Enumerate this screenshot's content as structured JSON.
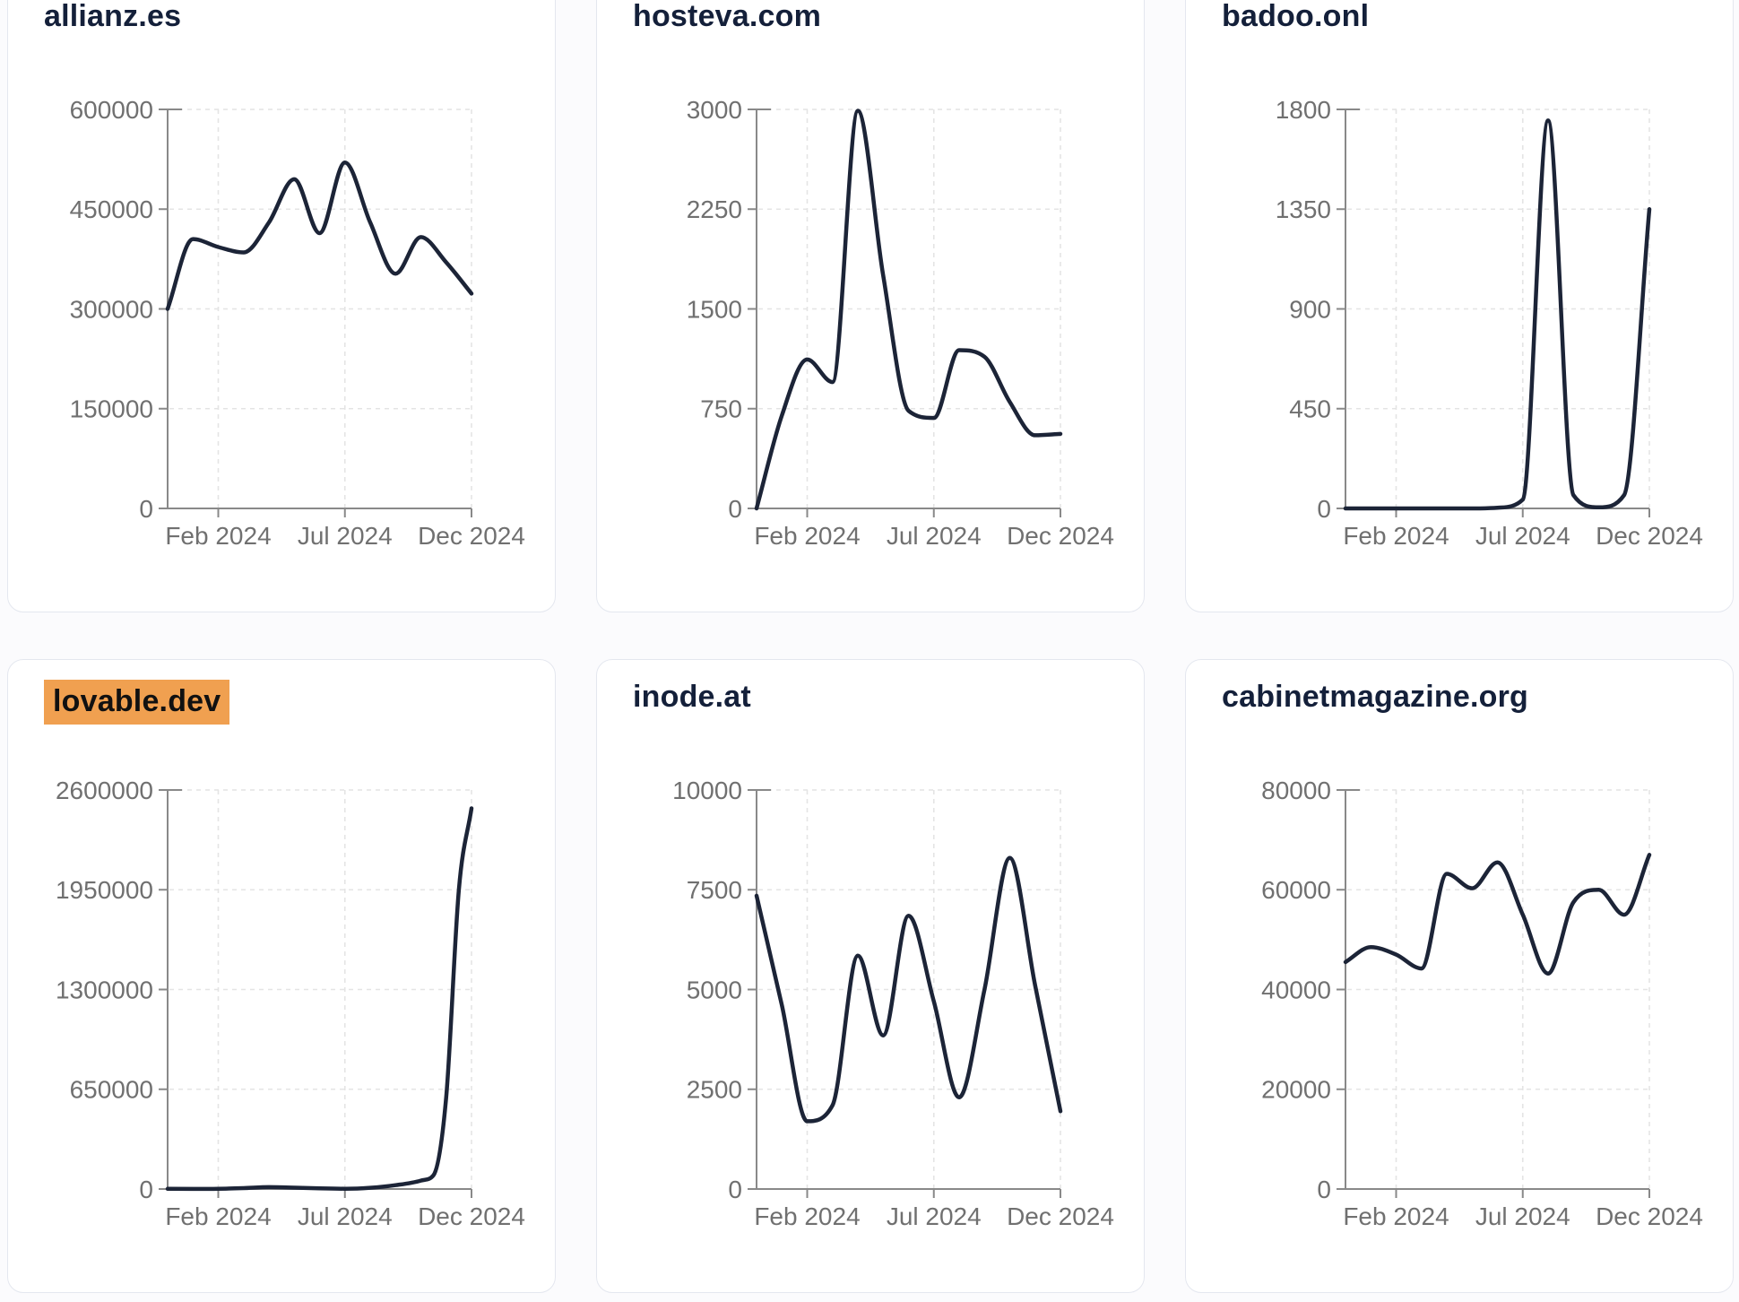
{
  "colors": {
    "line": "#1c2437",
    "title": "#14203a",
    "axis": "#898989",
    "tick_label": "#707070",
    "grid": "#e4e4e4",
    "card_background": "#ffffff",
    "card_border": "#e4e7ef",
    "page_background": "#fbfbfd",
    "highlight_background": "#f0a050",
    "highlight_text": "#111111"
  },
  "x_axis": {
    "t_min": 0,
    "t_max": 12,
    "ticks": [
      {
        "t": 2,
        "label": "Feb 2024"
      },
      {
        "t": 7,
        "label": "Jul 2024"
      },
      {
        "t": 12,
        "label": "Dec 2024"
      }
    ]
  },
  "chart_data": [
    {
      "type": "line",
      "title": "allianz.es",
      "highlighted": false,
      "ylim": [
        0,
        600000
      ],
      "y_ticks": [
        0,
        150000,
        300000,
        450000,
        600000
      ],
      "x_tick_labels": [
        "Feb 2024",
        "Jul 2024",
        "Dec 2024"
      ],
      "x": [
        0,
        1,
        2,
        3,
        4,
        5,
        6,
        7,
        8,
        9,
        10,
        11,
        12
      ],
      "values": [
        300000,
        405000,
        393000,
        385000,
        430000,
        495000,
        414000,
        520000,
        430000,
        353000,
        408000,
        370000,
        323000
      ]
    },
    {
      "type": "line",
      "title": "hosteva.com",
      "highlighted": false,
      "ylim": [
        0,
        3000
      ],
      "y_ticks": [
        0,
        750,
        1500,
        2250,
        3000
      ],
      "x_tick_labels": [
        "Feb 2024",
        "Jul 2024",
        "Dec 2024"
      ],
      "x": [
        0,
        1,
        2,
        3,
        4,
        5,
        6,
        7,
        8,
        9,
        10,
        11,
        12
      ],
      "values": [
        0,
        700,
        1120,
        950,
        2990,
        1750,
        735,
        680,
        1190,
        1140,
        800,
        550,
        560
      ]
    },
    {
      "type": "line",
      "title": "badoo.onl",
      "highlighted": false,
      "ylim": [
        0,
        1800
      ],
      "y_ticks": [
        0,
        450,
        900,
        1350,
        1800
      ],
      "x_tick_labels": [
        "Feb 2024",
        "Jul 2024",
        "Dec 2024"
      ],
      "x": [
        0,
        1,
        2,
        3,
        4,
        5,
        6,
        7,
        8,
        9,
        10,
        11,
        12
      ],
      "values": [
        0,
        0,
        0,
        0,
        0,
        0,
        3,
        40,
        1750,
        60,
        5,
        60,
        1350
      ]
    },
    {
      "type": "line",
      "title": "lovable.dev",
      "highlighted": true,
      "ylim": [
        0,
        2600000
      ],
      "y_ticks": [
        0,
        650000,
        1300000,
        1950000,
        2600000
      ],
      "x_tick_labels": [
        "Feb 2024",
        "Jul 2024",
        "Dec 2024"
      ],
      "x": [
        0,
        1,
        2,
        3,
        4,
        5,
        6,
        7,
        8,
        9,
        10,
        10.5,
        11,
        11.5,
        12
      ],
      "values": [
        1000,
        500,
        1500,
        6000,
        12000,
        9000,
        4000,
        2000,
        8000,
        25000,
        55000,
        90000,
        600000,
        1950000,
        2480000
      ]
    },
    {
      "type": "line",
      "title": "inode.at",
      "highlighted": false,
      "ylim": [
        0,
        10000
      ],
      "y_ticks": [
        0,
        2500,
        5000,
        7500,
        10000
      ],
      "x_tick_labels": [
        "Feb 2024",
        "Jul 2024",
        "Dec 2024"
      ],
      "x": [
        0,
        1,
        2,
        3,
        4,
        5,
        6,
        7,
        8,
        9,
        10,
        11,
        12
      ],
      "values": [
        7350,
        4600,
        1700,
        2100,
        5850,
        3850,
        6850,
        4700,
        2300,
        5000,
        8300,
        5100,
        1950
      ]
    },
    {
      "type": "line",
      "title": "cabinetmagazine.org",
      "highlighted": false,
      "ylim": [
        0,
        80000
      ],
      "y_ticks": [
        0,
        20000,
        40000,
        60000,
        80000
      ],
      "x_tick_labels": [
        "Feb 2024",
        "Jul 2024",
        "Dec 2024"
      ],
      "x": [
        0,
        1,
        2,
        3,
        4,
        5,
        6,
        7,
        8,
        9,
        10,
        11,
        12
      ],
      "values": [
        45500,
        48500,
        47000,
        44200,
        63200,
        60300,
        65500,
        55000,
        43200,
        57500,
        60000,
        55000,
        67000
      ]
    }
  ]
}
